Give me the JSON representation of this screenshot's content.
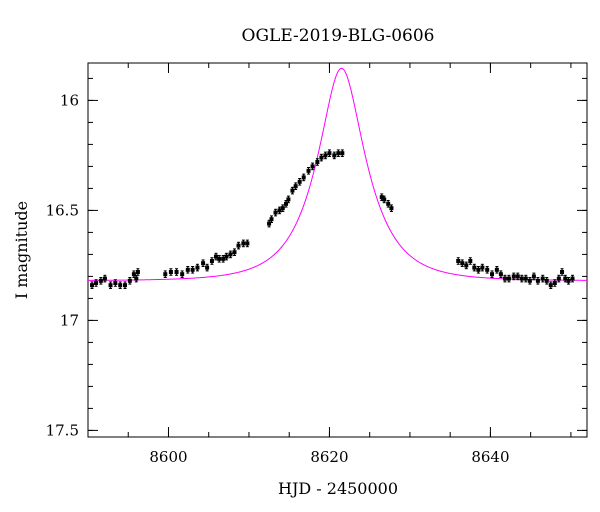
{
  "chart_data": {
    "type": "scatter",
    "title": "OGLE-2019-BLG-0606",
    "xlabel": "HJD - 2450000",
    "ylabel": "I magnitude",
    "xlim": [
      8590,
      8652
    ],
    "ylim": [
      17.53,
      15.83
    ],
    "y_inverted": true,
    "x_ticks": [
      8600,
      8620,
      8640
    ],
    "x_tick_labels": [
      "8600",
      "8620",
      "8640"
    ],
    "x_minor_step": 5,
    "y_ticks": [
      16,
      16.5,
      17,
      17.5
    ],
    "y_tick_labels": [
      "16",
      "16.5",
      "17",
      "17.5"
    ],
    "y_minor_step": 0.1,
    "grid": false,
    "colors": {
      "data": "#000000",
      "model": "#ff00ff"
    },
    "model_curve": {
      "baseline": 16.82,
      "u0": 0.44,
      "t0": 8621.5,
      "tE": 5.5
    },
    "series": [
      {
        "kind": "data-with-errorbars",
        "points": [
          [
            8590.5,
            16.84
          ],
          [
            8591.0,
            16.83
          ],
          [
            8591.6,
            16.82
          ],
          [
            8592.1,
            16.81
          ],
          [
            8592.8,
            16.84
          ],
          [
            8593.4,
            16.83
          ],
          [
            8594.0,
            16.84
          ],
          [
            8594.6,
            16.84
          ],
          [
            8595.2,
            16.82
          ],
          [
            8595.7,
            16.79
          ],
          [
            8596.0,
            16.81
          ],
          [
            8596.2,
            16.78
          ],
          [
            8599.6,
            16.79
          ],
          [
            8600.3,
            16.78
          ],
          [
            8601.0,
            16.78
          ],
          [
            8601.7,
            16.79
          ],
          [
            8602.4,
            16.77
          ],
          [
            8603.0,
            16.77
          ],
          [
            8603.6,
            16.76
          ],
          [
            8604.3,
            16.74
          ],
          [
            8604.8,
            16.76
          ],
          [
            8605.4,
            16.73
          ],
          [
            8605.9,
            16.71
          ],
          [
            8606.3,
            16.72
          ],
          [
            8606.8,
            16.72
          ],
          [
            8607.2,
            16.71
          ],
          [
            8607.7,
            16.7
          ],
          [
            8608.2,
            16.69
          ],
          [
            8608.7,
            16.66
          ],
          [
            8609.3,
            16.65
          ],
          [
            8609.8,
            16.65
          ],
          [
            8612.5,
            16.56
          ],
          [
            8612.8,
            16.54
          ],
          [
            8613.3,
            16.51
          ],
          [
            8613.8,
            16.5
          ],
          [
            8614.2,
            16.49
          ],
          [
            8614.6,
            16.47
          ],
          [
            8614.9,
            16.45
          ],
          [
            8615.4,
            16.41
          ],
          [
            8615.8,
            16.39
          ],
          [
            8616.3,
            16.37
          ],
          [
            8616.8,
            16.35
          ],
          [
            8617.4,
            16.32
          ],
          [
            8617.9,
            16.3
          ],
          [
            8618.5,
            16.28
          ],
          [
            8619.0,
            16.26
          ],
          [
            8619.5,
            16.25
          ],
          [
            8620.0,
            16.24
          ],
          [
            8620.6,
            16.25
          ],
          [
            8621.1,
            16.24
          ],
          [
            8621.6,
            16.24
          ],
          [
            8626.5,
            16.44
          ],
          [
            8626.8,
            16.45
          ],
          [
            8627.3,
            16.47
          ],
          [
            8627.7,
            16.49
          ],
          [
            8636.0,
            16.73
          ],
          [
            8636.5,
            16.74
          ],
          [
            8637.0,
            16.75
          ],
          [
            8637.5,
            16.73
          ],
          [
            8638.0,
            16.76
          ],
          [
            8638.5,
            16.77
          ],
          [
            8639.0,
            16.76
          ],
          [
            8639.6,
            16.77
          ],
          [
            8640.2,
            16.79
          ],
          [
            8640.8,
            16.77
          ],
          [
            8641.3,
            16.79
          ],
          [
            8641.8,
            16.81
          ],
          [
            8642.3,
            16.81
          ],
          [
            8642.9,
            16.8
          ],
          [
            8643.4,
            16.8
          ],
          [
            8643.9,
            16.81
          ],
          [
            8644.4,
            16.81
          ],
          [
            8644.9,
            16.82
          ],
          [
            8645.4,
            16.8
          ],
          [
            8645.9,
            16.82
          ],
          [
            8646.5,
            16.81
          ],
          [
            8647.0,
            16.82
          ],
          [
            8647.5,
            16.84
          ],
          [
            8648.0,
            16.83
          ],
          [
            8648.5,
            16.81
          ],
          [
            8648.9,
            16.78
          ],
          [
            8649.3,
            16.81
          ],
          [
            8649.7,
            16.82
          ],
          [
            8650.2,
            16.81
          ]
        ],
        "error": 0.015
      }
    ]
  }
}
